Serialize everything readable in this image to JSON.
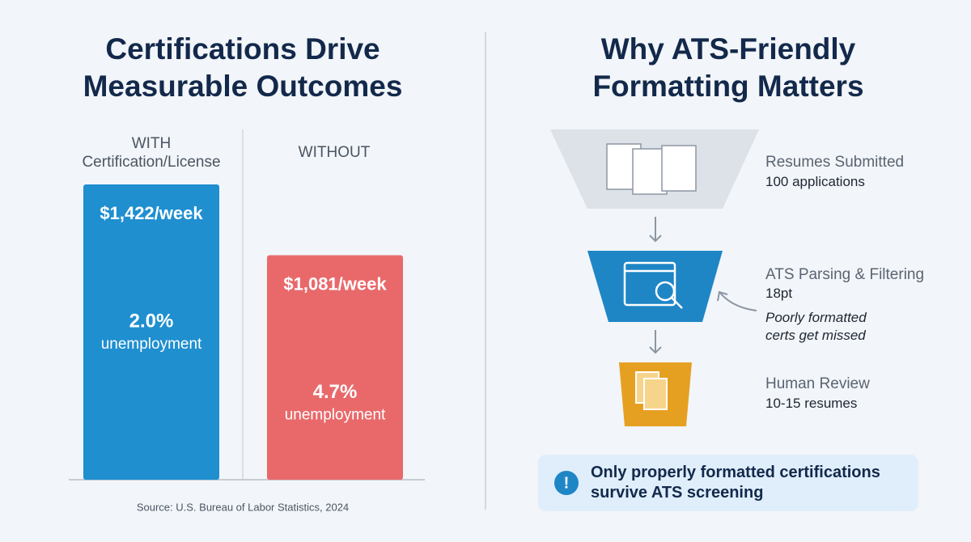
{
  "chart_data": {
    "type": "bar",
    "title": "Certifications Drive Measurable Outcomes",
    "categories": [
      "WITH Certification/License",
      "WITHOUT"
    ],
    "values": [
      1422,
      1081
    ],
    "value_labels": [
      "$1,422/week",
      "$1,081/week"
    ],
    "colors": [
      "#1f8fd0",
      "#e9696b"
    ],
    "unemployment": {
      "label": "unemployment",
      "values": [
        2.0,
        4.7
      ],
      "value_labels": [
        "2.0%",
        "4.7%"
      ]
    },
    "source": "Source: U.S. Bureau of Labor Statistics, 2024"
  },
  "funnel": {
    "title": "Why ATS-Friendly Formatting Matters",
    "stages": [
      {
        "title": "Resumes Submitted",
        "detail": "100 applications"
      },
      {
        "title": "ATS Parsing & Filtering",
        "detail": "18pt"
      },
      {
        "title": "Human Review",
        "detail": "10-15 resumes"
      }
    ],
    "note": "Poorly formatted certs get missed",
    "callout": "Only properly formatted certifications survive ATS screening"
  }
}
